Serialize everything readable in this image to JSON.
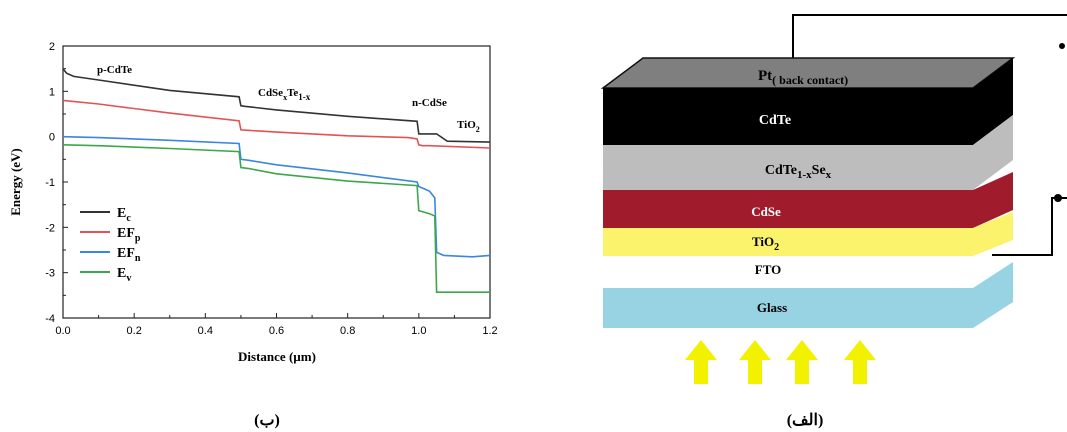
{
  "panel_b": {
    "caption": "(ب)",
    "annotations": {
      "p_cdte": "p-CdTe",
      "cdsexte_main": "CdSe",
      "cdsexte_sub1": "x",
      "cdsexte_mid": "Te",
      "cdsexte_sub2": "1-x",
      "n_cdse": "n-CdSe",
      "tio2_main": "TiO",
      "tio2_sub": "2"
    },
    "legend": [
      {
        "main": "E",
        "sub": "c"
      },
      {
        "main": "EF",
        "sub": "p"
      },
      {
        "main": "EF",
        "sub": "n"
      },
      {
        "main": "E",
        "sub": "v"
      }
    ]
  },
  "chart_data": {
    "type": "line",
    "xlabel": "Distance (µm)",
    "ylabel": "Energy (eV)",
    "xlim": [
      0.0,
      1.2
    ],
    "ylim": [
      -4,
      2
    ],
    "xticks": [
      "0.0",
      "0.2",
      "0.4",
      "0.6",
      "0.8",
      "1.0",
      "1.2"
    ],
    "yticks": [
      "2",
      "1",
      "0",
      "-1",
      "-2",
      "-3",
      "-4"
    ],
    "xtick_values": [
      0.0,
      0.2,
      0.4,
      0.6,
      0.8,
      1.0,
      1.2
    ],
    "ytick_values": [
      2,
      1,
      0,
      -1,
      -2,
      -3,
      -4
    ],
    "grid": false,
    "legend_position": "lower-left",
    "series": [
      {
        "name": "Ec",
        "color": "#333333",
        "x": [
          0.0,
          0.01,
          0.03,
          0.1,
          0.3,
          0.495,
          0.5,
          0.51,
          0.6,
          0.8,
          0.995,
          1.0,
          1.05,
          1.08,
          1.2
        ],
        "y": [
          1.5,
          1.4,
          1.33,
          1.25,
          1.02,
          0.88,
          0.68,
          0.67,
          0.59,
          0.45,
          0.34,
          0.06,
          0.06,
          -0.1,
          -0.12
        ]
      },
      {
        "name": "EFp",
        "color": "#e35353",
        "x": [
          0.0,
          0.1,
          0.3,
          0.495,
          0.5,
          0.52,
          0.6,
          0.8,
          0.97,
          0.995,
          1.0,
          1.01,
          1.03,
          1.2
        ],
        "y": [
          0.8,
          0.72,
          0.52,
          0.35,
          0.15,
          0.14,
          0.1,
          0.02,
          -0.02,
          -0.05,
          -0.18,
          -0.2,
          -0.2,
          -0.25
        ]
      },
      {
        "name": "EFn",
        "color": "#3a86e0",
        "x": [
          0.0,
          0.1,
          0.3,
          0.495,
          0.5,
          0.52,
          0.6,
          0.8,
          0.995,
          1.0,
          1.03,
          1.045,
          1.05,
          1.07,
          1.15,
          1.2
        ],
        "y": [
          0.0,
          -0.02,
          -0.08,
          -0.15,
          -0.5,
          -0.52,
          -0.62,
          -0.8,
          -1.0,
          -1.1,
          -1.2,
          -1.35,
          -2.55,
          -2.62,
          -2.65,
          -2.62
        ]
      },
      {
        "name": "Ev",
        "color": "#3aa84a",
        "x": [
          0.0,
          0.1,
          0.3,
          0.495,
          0.5,
          0.52,
          0.6,
          0.8,
          0.995,
          1.0,
          1.03,
          1.045,
          1.05,
          1.2
        ],
        "y": [
          -0.18,
          -0.2,
          -0.26,
          -0.33,
          -0.68,
          -0.7,
          -0.82,
          -0.98,
          -1.08,
          -1.63,
          -1.7,
          -1.75,
          -3.43,
          -3.43
        ]
      }
    ]
  },
  "panel_a": {
    "caption": "(الف)",
    "layers": {
      "pt_main": "Pt",
      "pt_sub": "( back contact)",
      "cdte": "CdTe",
      "cdtese_a": "CdTe",
      "cdtese_sub1": "1-x",
      "cdtese_b": "Se",
      "cdtese_sub2": "x",
      "cdse": "CdSe",
      "tio2_main": "TiO",
      "tio2_sub": "2",
      "fto": "FTO",
      "glass": "Glass"
    },
    "colors": {
      "pt": "#7f7f7f",
      "cdte": "#000000",
      "cdtese": "#bdbdbd",
      "cdse": "#a01c2c",
      "tio2": "#fbf36b",
      "glass": "#98d3e3",
      "light_arrow": "#f2f200"
    }
  }
}
